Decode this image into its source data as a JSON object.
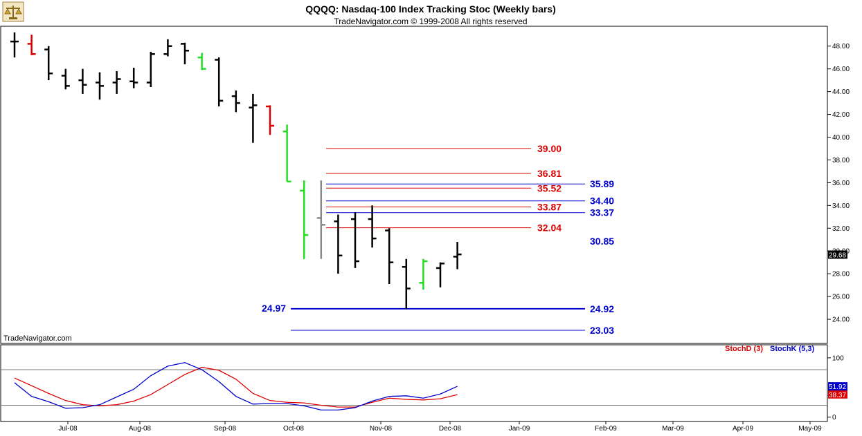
{
  "header": {
    "title": "QQQQ:  Nasdaq-100 Index Tracking Stoc  (Weekly bars)",
    "copyright": "TradeNavigator.com © 1999-2008 All rights reserved",
    "watermark": "TradeNavigator.com",
    "logo_icon": "scales-logo-icon"
  },
  "colors": {
    "up_bar": "#000000",
    "down_red": "#dd0000",
    "up_green": "#22dd22",
    "gray_bar": "#888888",
    "red_level": "#dd0000",
    "blue_level": "#0000cc",
    "stoch_d": "#dd0000",
    "stoch_k": "#0000cc"
  },
  "chart_data": [
    {
      "type": "ohlc",
      "title": "QQQQ:  Nasdaq-100 Index Tracking Stoc  (Weekly bars)",
      "ylim": [
        22,
        49.5
      ],
      "yticks": [
        "24.00",
        "26.00",
        "28.00",
        "30.00",
        "32.00",
        "34.00",
        "36.00",
        "38.00",
        "40.00",
        "42.00",
        "44.00",
        "46.00",
        "48.00"
      ],
      "ytick_values": [
        24,
        26,
        28,
        30,
        32,
        34,
        36,
        38,
        40,
        42,
        44,
        46,
        48
      ],
      "xlabels": [
        "Jul-08",
        "Aug-08",
        "Sep-08",
        "Oct-08",
        "Nov-08",
        "Dec-08",
        "Jan-09",
        "Feb-09",
        "Mar-09",
        "Apr-09",
        "May-09"
      ],
      "last_price": "29.68",
      "bars": [
        {
          "o": 48.4,
          "h": 49.2,
          "l": 47.0,
          "c": 48.4,
          "color": "black"
        },
        {
          "o": 48.2,
          "h": 49.0,
          "l": 47.2,
          "c": 47.3,
          "color": "red"
        },
        {
          "o": 47.7,
          "h": 48.0,
          "l": 45.0,
          "c": 45.6,
          "color": "black"
        },
        {
          "o": 45.4,
          "h": 46.0,
          "l": 44.2,
          "c": 44.5,
          "color": "black"
        },
        {
          "o": 45.0,
          "h": 46.0,
          "l": 43.8,
          "c": 44.6,
          "color": "black"
        },
        {
          "o": 44.8,
          "h": 45.7,
          "l": 43.3,
          "c": 44.5,
          "color": "black"
        },
        {
          "o": 44.8,
          "h": 45.8,
          "l": 43.8,
          "c": 45.1,
          "color": "black"
        },
        {
          "o": 44.9,
          "h": 46.1,
          "l": 44.3,
          "c": 44.8,
          "color": "black"
        },
        {
          "o": 44.8,
          "h": 47.5,
          "l": 44.4,
          "c": 47.3,
          "color": "black"
        },
        {
          "o": 47.3,
          "h": 48.6,
          "l": 47.1,
          "c": 48.0,
          "color": "black"
        },
        {
          "o": 48.2,
          "h": 48.3,
          "l": 46.4,
          "c": 47.6,
          "color": "black"
        },
        {
          "o": 47.0,
          "h": 47.4,
          "l": 45.9,
          "c": 46.0,
          "color": "green"
        },
        {
          "o": 46.8,
          "h": 47.0,
          "l": 42.7,
          "c": 43.2,
          "color": "black"
        },
        {
          "o": 43.6,
          "h": 44.1,
          "l": 42.2,
          "c": 43.0,
          "color": "black"
        },
        {
          "o": 42.6,
          "h": 43.8,
          "l": 39.5,
          "c": 42.8,
          "color": "black"
        },
        {
          "o": 42.7,
          "h": 42.8,
          "l": 40.2,
          "c": 41.0,
          "color": "red"
        },
        {
          "o": 40.5,
          "h": 41.1,
          "l": 36.1,
          "c": 36.1,
          "color": "green"
        },
        {
          "o": 35.3,
          "h": 36.2,
          "l": 29.3,
          "c": 31.4,
          "color": "green"
        },
        {
          "o": 32.9,
          "h": 36.2,
          "l": 29.3,
          "c": 32.3,
          "color": "gray"
        },
        {
          "o": 32.6,
          "h": 33.2,
          "l": 28.0,
          "c": 29.6,
          "color": "black"
        },
        {
          "o": 32.8,
          "h": 33.4,
          "l": 28.5,
          "c": 29.1,
          "color": "black"
        },
        {
          "o": 32.8,
          "h": 34.0,
          "l": 30.3,
          "c": 31.1,
          "color": "black"
        },
        {
          "o": 31.8,
          "h": 32.0,
          "l": 27.1,
          "c": 29.0,
          "color": "black"
        },
        {
          "o": 28.6,
          "h": 29.3,
          "l": 24.9,
          "c": 26.7,
          "color": "black"
        },
        {
          "o": 27.2,
          "h": 29.3,
          "l": 26.6,
          "c": 29.1,
          "color": "green"
        },
        {
          "o": 28.5,
          "h": 29.0,
          "l": 26.8,
          "c": 28.9,
          "color": "black"
        },
        {
          "o": 29.5,
          "h": 30.8,
          "l": 28.4,
          "c": 29.7,
          "color": "black"
        }
      ],
      "levels": [
        {
          "value": 39.0,
          "label": "39.00",
          "color": "red"
        },
        {
          "value": 36.81,
          "label": "36.81",
          "color": "red"
        },
        {
          "value": 35.89,
          "label": "35.89",
          "color": "blue"
        },
        {
          "value": 35.52,
          "label": "35.52",
          "color": "red"
        },
        {
          "value": 34.4,
          "label": "34.40",
          "color": "blue"
        },
        {
          "value": 33.87,
          "label": "33.87",
          "color": "red"
        },
        {
          "value": 33.37,
          "label": "33.37",
          "color": "blue"
        },
        {
          "value": 32.04,
          "label": "32.04",
          "color": "red"
        },
        {
          "value": 30.85,
          "label": "30.85",
          "color": "blue"
        },
        {
          "value": 24.92,
          "label": "24.92",
          "color": "blue"
        },
        {
          "value": 23.03,
          "label": "23.03",
          "color": "blue"
        }
      ],
      "low_annotation": {
        "value": 24.97,
        "label": "24.97"
      }
    },
    {
      "type": "line",
      "title": "",
      "ylim": [
        -5,
        115
      ],
      "yticks": [
        "100",
        "0"
      ],
      "ytick_values": [
        100,
        0
      ],
      "guides": [
        80,
        20
      ],
      "series": [
        {
          "name": "StochD (3)",
          "color": "red",
          "last": "38.37",
          "values": [
            66,
            53,
            40,
            28,
            21,
            19,
            21,
            27,
            38,
            55,
            72,
            84,
            79,
            64,
            40,
            28,
            25,
            24,
            20,
            17,
            17,
            25,
            32,
            30,
            29,
            31,
            38
          ]
        },
        {
          "name": "StochK (5,3)",
          "color": "blue",
          "last": "51.92",
          "values": [
            58,
            35,
            26,
            15,
            16,
            21,
            34,
            47,
            70,
            86,
            92,
            80,
            60,
            35,
            22,
            23,
            23,
            19,
            12,
            12,
            16,
            27,
            35,
            36,
            32,
            39,
            52
          ]
        }
      ]
    }
  ]
}
